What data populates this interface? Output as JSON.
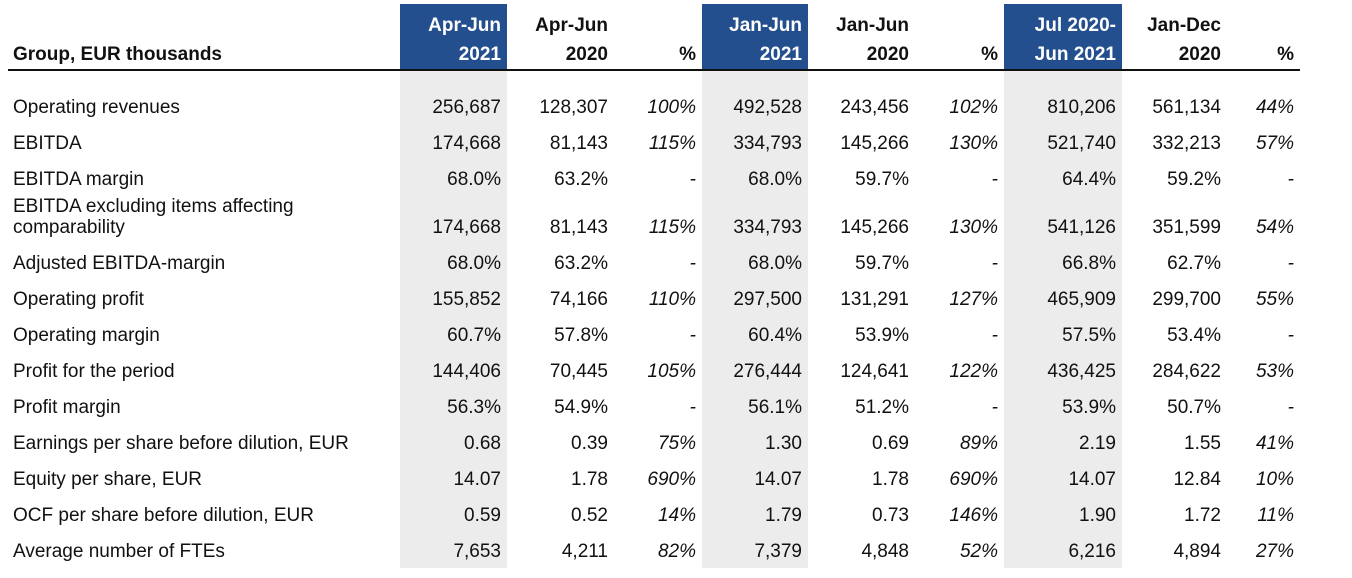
{
  "table": {
    "header": {
      "label": "Group, EUR thousands",
      "columns": [
        {
          "line1": "Apr-Jun",
          "line2": "2021",
          "highlight": true
        },
        {
          "line1": "Apr-Jun",
          "line2": "2020",
          "highlight": false
        },
        {
          "line1": "",
          "line2": "%",
          "highlight": false
        },
        {
          "line1": "Jan-Jun",
          "line2": "2021",
          "highlight": true
        },
        {
          "line1": "Jan-Jun",
          "line2": "2020",
          "highlight": false
        },
        {
          "line1": "",
          "line2": "%",
          "highlight": false
        },
        {
          "line1": "Jul 2020-",
          "line2": "Jun 2021",
          "highlight": true
        },
        {
          "line1": "Jan-Dec",
          "line2": "2020",
          "highlight": false
        },
        {
          "line1": "",
          "line2": "%",
          "highlight": false
        }
      ]
    },
    "rows": [
      {
        "label": "Operating revenues",
        "values": [
          "256,687",
          "128,307",
          "100%",
          "492,528",
          "243,456",
          "102%",
          "810,206",
          "561,134",
          "44%"
        ]
      },
      {
        "label": "EBITDA",
        "values": [
          "174,668",
          "81,143",
          "115%",
          "334,793",
          "145,266",
          "130%",
          "521,740",
          "332,213",
          "57%"
        ]
      },
      {
        "label": "EBITDA margin",
        "values": [
          "68.0%",
          "63.2%",
          "-",
          "68.0%",
          "59.7%",
          "-",
          "64.4%",
          "59.2%",
          "-"
        ]
      },
      {
        "label": "EBITDA excluding items affecting comparability",
        "values": [
          "174,668",
          "81,143",
          "115%",
          "334,793",
          "145,266",
          "130%",
          "541,126",
          "351,599",
          "54%"
        ]
      },
      {
        "label": "Adjusted EBITDA-margin",
        "values": [
          "68.0%",
          "63.2%",
          "-",
          "68.0%",
          "59.7%",
          "-",
          "66.8%",
          "62.7%",
          "-"
        ]
      },
      {
        "label": "Operating profit",
        "values": [
          "155,852",
          "74,166",
          "110%",
          "297,500",
          "131,291",
          "127%",
          "465,909",
          "299,700",
          "55%"
        ]
      },
      {
        "label": "Operating margin",
        "values": [
          "60.7%",
          "57.8%",
          "-",
          "60.4%",
          "53.9%",
          "-",
          "57.5%",
          "53.4%",
          "-"
        ]
      },
      {
        "label": "Profit for the period",
        "values": [
          "144,406",
          "70,445",
          "105%",
          "276,444",
          "124,641",
          "122%",
          "436,425",
          "284,622",
          "53%"
        ]
      },
      {
        "label": "Profit margin",
        "values": [
          "56.3%",
          "54.9%",
          "-",
          "56.1%",
          "51.2%",
          "-",
          "53.9%",
          "50.7%",
          "-"
        ]
      },
      {
        "label": "Earnings per share before dilution, EUR",
        "values": [
          "0.68",
          "0.39",
          "75%",
          "1.30",
          "0.69",
          "89%",
          "2.19",
          "1.55",
          "41%"
        ]
      },
      {
        "label": "Equity per share, EUR",
        "values": [
          "14.07",
          "1.78",
          "690%",
          "14.07",
          "1.78",
          "690%",
          "14.07",
          "12.84",
          "10%"
        ]
      },
      {
        "label": "OCF per share before dilution, EUR",
        "values": [
          "0.59",
          "0.52",
          "14%",
          "1.79",
          "0.73",
          "146%",
          "1.90",
          "1.72",
          "11%"
        ]
      },
      {
        "label": "Average number of FTEs",
        "values": [
          "7,653",
          "4,211",
          "82%",
          "7,379",
          "4,848",
          "52%",
          "6,216",
          "4,894",
          "27%"
        ]
      }
    ]
  }
}
